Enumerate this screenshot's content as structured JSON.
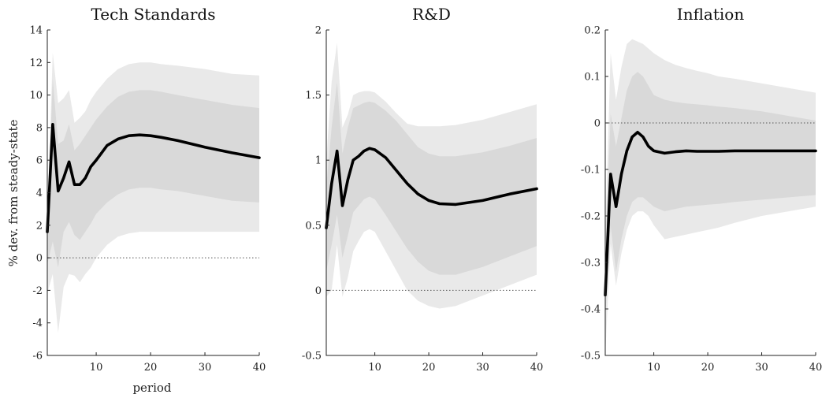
{
  "figure": {
    "ylabel": "% dev. from steady-state",
    "xlabel": "period"
  },
  "colors": {
    "outer_band": "#e9e9e9",
    "inner_band": "#d9d9d9",
    "median": "#000000",
    "axis": "#222222"
  },
  "chart_data": [
    {
      "type": "line",
      "title": "Tech Standards",
      "xlabel": "period",
      "ylabel": "% dev. from steady-state",
      "xlim": [
        1,
        40
      ],
      "ylim": [
        -6,
        14
      ],
      "xticks": [
        10,
        20,
        30,
        40
      ],
      "yticks": [
        -6,
        -4,
        -2,
        0,
        2,
        4,
        6,
        8,
        10,
        12,
        14
      ],
      "ytick_labels": [
        "-6",
        "-4",
        "-2",
        "0",
        "2",
        "4",
        "6",
        "8",
        "10",
        "12",
        "14"
      ],
      "reference_line": 0,
      "series": [
        {
          "role": "median",
          "x": [
            1,
            2,
            3,
            4,
            5,
            6,
            7,
            8,
            9,
            10,
            12,
            14,
            16,
            18,
            20,
            22,
            25,
            30,
            35,
            40
          ],
          "y": [
            1.6,
            8.2,
            4.1,
            4.9,
            5.9,
            4.5,
            4.5,
            4.9,
            5.6,
            6.0,
            6.9,
            7.3,
            7.5,
            7.55,
            7.5,
            7.4,
            7.2,
            6.8,
            6.45,
            6.15
          ]
        },
        {
          "role": "inner_band",
          "x": [
            1,
            2,
            3,
            4,
            5,
            6,
            7,
            8,
            9,
            10,
            12,
            14,
            16,
            18,
            20,
            22,
            25,
            30,
            35,
            40
          ],
          "lower": [
            -0.4,
            1.0,
            -0.6,
            1.6,
            2.2,
            1.4,
            1.1,
            1.6,
            2.1,
            2.7,
            3.4,
            3.9,
            4.2,
            4.3,
            4.3,
            4.2,
            4.1,
            3.8,
            3.5,
            3.4
          ],
          "upper": [
            1.8,
            11.0,
            7.0,
            7.2,
            8.2,
            6.6,
            7.0,
            7.5,
            8.0,
            8.5,
            9.3,
            9.9,
            10.2,
            10.3,
            10.3,
            10.2,
            10.0,
            9.7,
            9.4,
            9.2
          ]
        },
        {
          "role": "outer_band",
          "x": [
            1,
            2,
            3,
            4,
            5,
            6,
            7,
            8,
            9,
            10,
            12,
            14,
            16,
            18,
            20,
            22,
            25,
            30,
            35,
            40
          ],
          "lower": [
            -2.2,
            -1.0,
            -4.6,
            -1.8,
            -1.0,
            -1.1,
            -1.5,
            -1.0,
            -0.6,
            0.0,
            0.8,
            1.3,
            1.5,
            1.6,
            1.6,
            1.6,
            1.6,
            1.6,
            1.6,
            1.6
          ],
          "upper": [
            2.0,
            12.6,
            9.5,
            9.8,
            10.3,
            8.3,
            8.6,
            9.0,
            9.7,
            10.2,
            11.0,
            11.6,
            11.9,
            12.0,
            12.0,
            11.9,
            11.8,
            11.6,
            11.3,
            11.2
          ]
        }
      ]
    },
    {
      "type": "line",
      "title": "R&D",
      "xlim": [
        1,
        40
      ],
      "ylim": [
        -0.5,
        2
      ],
      "xticks": [
        10,
        20,
        30,
        40
      ],
      "yticks": [
        -0.5,
        0,
        0.5,
        1,
        1.5,
        2
      ],
      "ytick_labels": [
        "-0.5",
        "0",
        "0.5",
        "1",
        "1.5",
        "2"
      ],
      "reference_line": 0,
      "series": [
        {
          "role": "median",
          "x": [
            1,
            2,
            3,
            4,
            5,
            6,
            7,
            8,
            9,
            10,
            12,
            14,
            16,
            18,
            20,
            22,
            25,
            30,
            35,
            40
          ],
          "y": [
            0.48,
            0.82,
            1.07,
            0.65,
            0.85,
            1.0,
            1.03,
            1.07,
            1.09,
            1.08,
            1.02,
            0.92,
            0.82,
            0.74,
            0.69,
            0.665,
            0.66,
            0.69,
            0.74,
            0.78
          ]
        },
        {
          "role": "inner_band",
          "x": [
            1,
            2,
            3,
            4,
            5,
            6,
            7,
            8,
            9,
            10,
            12,
            14,
            16,
            18,
            20,
            22,
            25,
            30,
            35,
            40
          ],
          "lower": [
            0.15,
            0.35,
            0.58,
            0.25,
            0.42,
            0.6,
            0.65,
            0.7,
            0.72,
            0.7,
            0.58,
            0.45,
            0.32,
            0.22,
            0.15,
            0.12,
            0.12,
            0.18,
            0.26,
            0.34
          ],
          "upper": [
            0.8,
            1.25,
            1.6,
            1.05,
            1.25,
            1.4,
            1.42,
            1.44,
            1.45,
            1.44,
            1.38,
            1.3,
            1.2,
            1.1,
            1.05,
            1.03,
            1.03,
            1.06,
            1.11,
            1.17
          ]
        },
        {
          "role": "outer_band",
          "x": [
            1,
            2,
            3,
            4,
            5,
            6,
            7,
            8,
            9,
            10,
            12,
            14,
            16,
            18,
            20,
            22,
            25,
            30,
            35,
            40
          ],
          "lower": [
            -0.05,
            0.0,
            0.35,
            -0.05,
            0.1,
            0.3,
            0.38,
            0.45,
            0.47,
            0.45,
            0.3,
            0.15,
            0.0,
            -0.08,
            -0.12,
            -0.14,
            -0.12,
            -0.04,
            0.04,
            0.12
          ],
          "upper": [
            1.0,
            1.6,
            1.9,
            1.25,
            1.35,
            1.5,
            1.52,
            1.53,
            1.53,
            1.52,
            1.45,
            1.36,
            1.28,
            1.26,
            1.26,
            1.26,
            1.27,
            1.31,
            1.37,
            1.43
          ]
        }
      ]
    },
    {
      "type": "line",
      "title": "Inflation",
      "xlim": [
        1,
        40
      ],
      "ylim": [
        -0.5,
        0.2
      ],
      "xticks": [
        10,
        20,
        30,
        40
      ],
      "yticks": [
        -0.5,
        -0.4,
        -0.3,
        -0.2,
        -0.1,
        0,
        0.1,
        0.2
      ],
      "ytick_labels": [
        "-0.5",
        "-0.4",
        "-0.3",
        "-0.2",
        "-0.1",
        "0",
        "0.1",
        "0.2"
      ],
      "reference_line": 0,
      "series": [
        {
          "role": "median",
          "x": [
            1,
            2,
            3,
            4,
            5,
            6,
            7,
            8,
            9,
            10,
            12,
            14,
            16,
            18,
            20,
            22,
            25,
            30,
            35,
            40
          ],
          "y": [
            -0.37,
            -0.11,
            -0.18,
            -0.11,
            -0.06,
            -0.03,
            -0.02,
            -0.03,
            -0.05,
            -0.06,
            -0.065,
            -0.062,
            -0.06,
            -0.061,
            -0.061,
            -0.061,
            -0.06,
            -0.06,
            -0.06,
            -0.06
          ]
        },
        {
          "role": "inner_band",
          "x": [
            1,
            2,
            3,
            4,
            5,
            6,
            7,
            8,
            9,
            10,
            12,
            14,
            16,
            18,
            20,
            22,
            25,
            30,
            35,
            40
          ],
          "lower": [
            -0.42,
            -0.22,
            -0.32,
            -0.25,
            -0.2,
            -0.17,
            -0.16,
            -0.16,
            -0.17,
            -0.18,
            -0.19,
            -0.185,
            -0.18,
            -0.178,
            -0.176,
            -0.174,
            -0.17,
            -0.165,
            -0.16,
            -0.155
          ],
          "upper": [
            -0.3,
            0.02,
            -0.05,
            0.01,
            0.07,
            0.1,
            0.11,
            0.1,
            0.08,
            0.06,
            0.05,
            0.045,
            0.042,
            0.04,
            0.038,
            0.035,
            0.032,
            0.025,
            0.015,
            0.005
          ]
        },
        {
          "role": "outer_band",
          "x": [
            1,
            2,
            3,
            4,
            5,
            6,
            7,
            8,
            9,
            10,
            12,
            14,
            16,
            18,
            20,
            22,
            25,
            30,
            35,
            40
          ],
          "lower": [
            -0.5,
            -0.26,
            -0.35,
            -0.28,
            -0.23,
            -0.2,
            -0.19,
            -0.19,
            -0.2,
            -0.22,
            -0.25,
            -0.245,
            -0.24,
            -0.235,
            -0.23,
            -0.225,
            -0.215,
            -0.2,
            -0.19,
            -0.18
          ],
          "upper": [
            -0.25,
            0.15,
            0.05,
            0.12,
            0.17,
            0.18,
            0.175,
            0.17,
            0.16,
            0.15,
            0.135,
            0.125,
            0.118,
            0.112,
            0.107,
            0.1,
            0.095,
            0.085,
            0.075,
            0.065
          ]
        }
      ]
    }
  ]
}
